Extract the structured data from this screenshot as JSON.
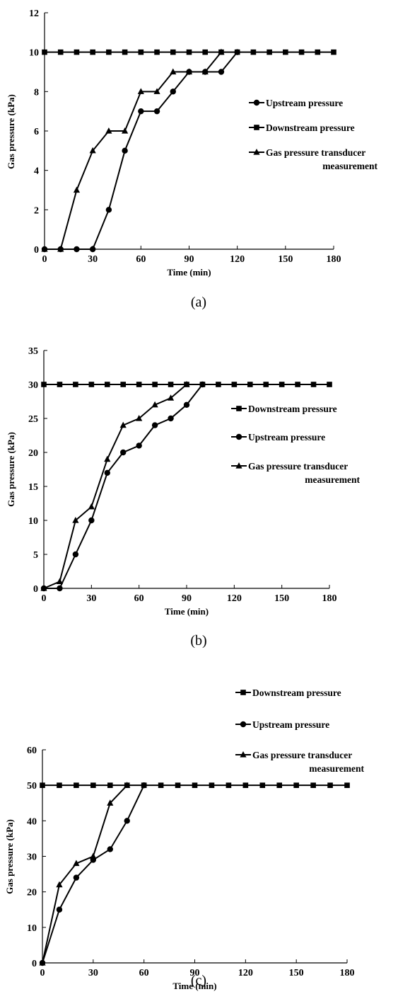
{
  "chart_data": [
    {
      "type": "line",
      "caption": "(a)",
      "xlabel": "Time (min)",
      "ylabel": "Gas pressure (kPa)",
      "xlim": [
        0,
        180
      ],
      "ylim": [
        0,
        12
      ],
      "xticks": [
        "0",
        "30",
        "60",
        "90",
        "120",
        "150",
        "180"
      ],
      "yticks": [
        "0",
        "2",
        "4",
        "6",
        "8",
        "10",
        "12"
      ],
      "grid": false,
      "legend_position": "right",
      "series": [
        {
          "name": "Upstream pressure",
          "marker": "circle",
          "x": [
            0,
            10,
            20,
            30,
            40,
            50,
            60,
            70,
            80,
            90,
            100,
            110,
            120
          ],
          "y": [
            0,
            0,
            0,
            0,
            2,
            5,
            7,
            7,
            8,
            9,
            9,
            9,
            10
          ]
        },
        {
          "name": "Downstream pressure",
          "marker": "square",
          "x": [
            0,
            10,
            20,
            30,
            40,
            50,
            60,
            70,
            80,
            90,
            100,
            110,
            120,
            130,
            140,
            150,
            160,
            170,
            180
          ],
          "y": [
            10,
            10,
            10,
            10,
            10,
            10,
            10,
            10,
            10,
            10,
            10,
            10,
            10,
            10,
            10,
            10,
            10,
            10,
            10
          ]
        },
        {
          "name": "Gas pressure transducer measurement",
          "marker": "triangle",
          "x": [
            0,
            10,
            20,
            30,
            40,
            50,
            60,
            70,
            80,
            90,
            100,
            110
          ],
          "y": [
            0,
            0,
            3,
            5,
            6,
            6,
            8,
            8,
            9,
            9,
            9,
            10
          ]
        }
      ]
    },
    {
      "type": "line",
      "caption": "(b)",
      "xlabel": "Time (min)",
      "ylabel": "Gas pressure (kPa)",
      "xlim": [
        0,
        180
      ],
      "ylim": [
        0,
        35
      ],
      "xticks": [
        "0",
        "30",
        "60",
        "90",
        "120",
        "150",
        "180"
      ],
      "yticks": [
        "0",
        "5",
        "10",
        "15",
        "20",
        "25",
        "30",
        "35"
      ],
      "grid": false,
      "legend_position": "right",
      "series": [
        {
          "name": "Downstream pressure",
          "marker": "square",
          "x": [
            0,
            10,
            20,
            30,
            40,
            50,
            60,
            70,
            80,
            90,
            100,
            110,
            120,
            130,
            140,
            150,
            160,
            170,
            180
          ],
          "y": [
            30,
            30,
            30,
            30,
            30,
            30,
            30,
            30,
            30,
            30,
            30,
            30,
            30,
            30,
            30,
            30,
            30,
            30,
            30
          ]
        },
        {
          "name": "Upstream pressure",
          "marker": "circle",
          "x": [
            0,
            10,
            20,
            30,
            40,
            50,
            60,
            70,
            80,
            90,
            100
          ],
          "y": [
            0,
            0,
            5,
            10,
            17,
            20,
            21,
            24,
            25,
            27,
            30
          ]
        },
        {
          "name": "Gas pressure transducer measurement",
          "marker": "triangle",
          "x": [
            0,
            10,
            20,
            30,
            40,
            50,
            60,
            70,
            80,
            90
          ],
          "y": [
            0,
            1,
            10,
            12,
            19,
            24,
            25,
            27,
            28,
            30
          ]
        }
      ]
    },
    {
      "type": "line",
      "caption": "(c)",
      "xlabel": "Time (min)",
      "ylabel": "Gas pressure (kPa)",
      "xlim": [
        0,
        180
      ],
      "ylim": [
        0,
        60
      ],
      "xticks": [
        "0",
        "30",
        "60",
        "90",
        "120",
        "150",
        "180"
      ],
      "yticks": [
        "0",
        "10",
        "20",
        "30",
        "40",
        "50",
        "60"
      ],
      "grid": false,
      "legend_position": "right",
      "series": [
        {
          "name": "Downstream pressure",
          "marker": "square",
          "x": [
            0,
            10,
            20,
            30,
            40,
            50,
            60,
            70,
            80,
            90,
            100,
            110,
            120,
            130,
            140,
            150,
            160,
            170,
            180
          ],
          "y": [
            50,
            50,
            50,
            50,
            50,
            50,
            50,
            50,
            50,
            50,
            50,
            50,
            50,
            50,
            50,
            50,
            50,
            50,
            50
          ]
        },
        {
          "name": "Upstream pressure",
          "marker": "circle",
          "x": [
            0,
            10,
            20,
            30,
            40,
            50,
            60
          ],
          "y": [
            0,
            15,
            24,
            29,
            32,
            40,
            50
          ]
        },
        {
          "name": "Gas pressure transducer measurement",
          "marker": "triangle",
          "x": [
            0,
            10,
            20,
            30,
            40,
            50
          ],
          "y": [
            0,
            22,
            28,
            30,
            45,
            50
          ]
        }
      ]
    }
  ]
}
